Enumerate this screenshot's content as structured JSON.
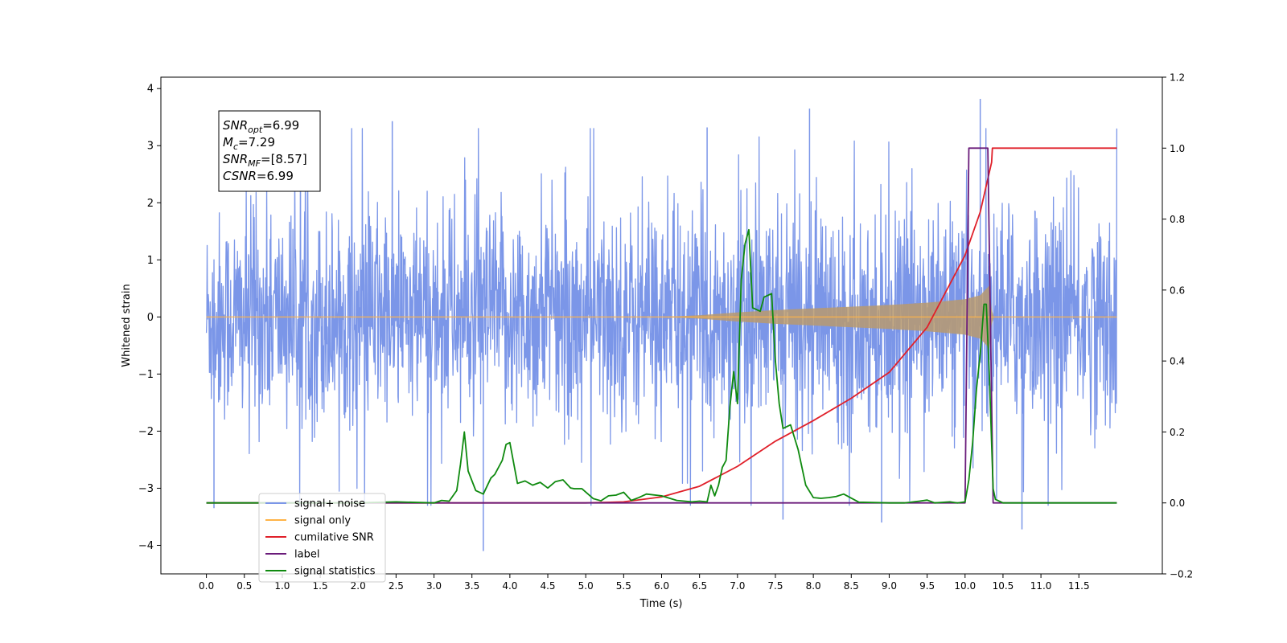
{
  "chart_data": {
    "type": "line",
    "title": "",
    "xlabel": "Time (s)",
    "ylabel": "Whitened strain",
    "ylabel_right": "",
    "xlim": [
      -0.6,
      12.6
    ],
    "ylim": [
      -4.5,
      4.2
    ],
    "ylim_right": [
      -0.2,
      1.2
    ],
    "x_ticks": [
      0.0,
      0.5,
      1.0,
      1.5,
      2.0,
      2.5,
      3.0,
      3.5,
      4.0,
      4.5,
      5.0,
      5.5,
      6.0,
      6.5,
      7.0,
      7.5,
      8.0,
      8.5,
      9.0,
      9.5,
      10.0,
      10.5,
      11.0,
      11.5
    ],
    "x_tick_labels": [
      "0.0",
      "0.5",
      "1.0",
      "1.5",
      "2.0",
      "2.5",
      "3.0",
      "3.5",
      "4.0",
      "4.5",
      "5.0",
      "5.5",
      "6.0",
      "6.5",
      "7.0",
      "7.5",
      "8.0",
      "8.5",
      "9.0",
      "9.5",
      "10.0",
      "10.5",
      "11.0",
      "11.5"
    ],
    "y_ticks": [
      4,
      3,
      2,
      1,
      0,
      -1,
      -2,
      -3,
      -4
    ],
    "y_tick_labels": [
      "4",
      "3",
      "2",
      "1",
      "0",
      "−1",
      "−2",
      "−3",
      "−4"
    ],
    "y_right_ticks": [
      1.2,
      1.0,
      0.8,
      0.6,
      0.4,
      0.2,
      0.0,
      -0.2
    ],
    "y_right_tick_labels": [
      "1.2",
      "1.0",
      "0.8",
      "0.6",
      "0.4",
      "0.2",
      "0.0",
      "−0.2"
    ],
    "grid": false,
    "legend_position": "lower-left",
    "annotation": {
      "lines": [
        {
          "sym": "SNR",
          "sub": "opt",
          "value": "=6.99"
        },
        {
          "sym": "M",
          "sub": "c",
          "value": "=7.29"
        },
        {
          "sym": "SNR",
          "sub": "MF",
          "value": "=[8.57]"
        },
        {
          "sym": "CSNR",
          "sub": "",
          "value": "=6.99"
        }
      ]
    },
    "series": [
      {
        "name": "signal+ noise",
        "axis": "left",
        "color": "#7b96e8",
        "kind": "noise_band",
        "x_range": [
          0.0,
          12.0
        ],
        "typical_amplitude": 1.2,
        "max": 3.82,
        "min": -4.1,
        "peaks": [
          {
            "x": 10.2,
            "y": 3.82
          },
          {
            "x": 7.95,
            "y": 3.65
          },
          {
            "x": 6.6,
            "y": 3.32
          },
          {
            "x": 2.45,
            "y": 3.43
          },
          {
            "x": 3.65,
            "y": -4.1
          },
          {
            "x": 10.75,
            "y": -3.72
          },
          {
            "x": 8.9,
            "y": -3.6
          },
          {
            "x": 7.6,
            "y": -3.55
          },
          {
            "x": 0.1,
            "y": -3.35
          }
        ]
      },
      {
        "name": "signal only",
        "axis": "left",
        "color": "#ffb347",
        "kind": "chirp",
        "x": [
          0.0,
          6.0,
          6.5,
          7.0,
          7.5,
          8.0,
          8.5,
          9.0,
          9.5,
          10.0,
          10.2,
          10.32,
          10.36,
          12.0
        ],
        "envelope": [
          0.0,
          0.0,
          0.03,
          0.08,
          0.12,
          0.15,
          0.18,
          0.21,
          0.25,
          0.31,
          0.38,
          0.55,
          0.0,
          0.0
        ]
      },
      {
        "name": "cumilative SNR",
        "axis": "right",
        "color": "#e0202a",
        "x": [
          0.0,
          5.0,
          5.5,
          6.0,
          6.5,
          7.0,
          7.5,
          8.0,
          8.5,
          9.0,
          9.5,
          10.0,
          10.2,
          10.35,
          10.36,
          12.0
        ],
        "values": [
          0.0,
          0.0,
          0.003,
          0.017,
          0.047,
          0.103,
          0.174,
          0.232,
          0.295,
          0.368,
          0.495,
          0.698,
          0.82,
          0.96,
          1.0,
          1.0
        ]
      },
      {
        "name": "label",
        "axis": "right",
        "color": "#6a1b7a",
        "x": [
          0.0,
          10.0,
          10.05,
          10.3,
          10.37,
          12.0
        ],
        "values": [
          0.0,
          0.0,
          1.0,
          1.0,
          0.0,
          0.0
        ]
      },
      {
        "name": "signal statistics",
        "axis": "right",
        "color": "#0f8a0f",
        "x": [
          0.0,
          2.0,
          2.5,
          3.0,
          3.1,
          3.2,
          3.3,
          3.35,
          3.4,
          3.45,
          3.55,
          3.65,
          3.75,
          3.8,
          3.9,
          3.95,
          4.0,
          4.1,
          4.2,
          4.3,
          4.4,
          4.5,
          4.6,
          4.7,
          4.8,
          4.85,
          4.95,
          5.1,
          5.2,
          5.3,
          5.4,
          5.5,
          5.6,
          5.7,
          5.8,
          6.0,
          6.2,
          6.4,
          6.5,
          6.6,
          6.65,
          6.7,
          6.75,
          6.8,
          6.85,
          6.9,
          6.95,
          7.0,
          7.05,
          7.1,
          7.15,
          7.2,
          7.3,
          7.35,
          7.45,
          7.5,
          7.55,
          7.6,
          7.7,
          7.8,
          7.9,
          8.0,
          8.1,
          8.2,
          8.3,
          8.4,
          8.6,
          9.0,
          9.2,
          9.4,
          9.5,
          9.6,
          9.8,
          9.9,
          10.0,
          10.05,
          10.1,
          10.15,
          10.2,
          10.25,
          10.28,
          10.32,
          10.37,
          10.4,
          10.5,
          11.0,
          11.5,
          12.0
        ],
        "values": [
          0.0,
          0.0,
          0.003,
          0.0,
          0.007,
          0.005,
          0.035,
          0.11,
          0.2,
          0.09,
          0.035,
          0.025,
          0.07,
          0.08,
          0.12,
          0.165,
          0.17,
          0.055,
          0.062,
          0.05,
          0.058,
          0.042,
          0.06,
          0.065,
          0.042,
          0.04,
          0.04,
          0.012,
          0.006,
          0.02,
          0.022,
          0.03,
          0.007,
          0.015,
          0.025,
          0.02,
          0.007,
          0.003,
          0.005,
          0.003,
          0.05,
          0.02,
          0.05,
          0.1,
          0.12,
          0.27,
          0.37,
          0.28,
          0.63,
          0.73,
          0.77,
          0.55,
          0.54,
          0.58,
          0.59,
          0.4,
          0.28,
          0.21,
          0.22,
          0.15,
          0.05,
          0.015,
          0.013,
          0.015,
          0.018,
          0.025,
          0.002,
          0.0,
          0.0,
          0.005,
          0.008,
          0.0,
          0.003,
          0.0,
          0.003,
          0.065,
          0.17,
          0.32,
          0.42,
          0.56,
          0.56,
          0.36,
          0.04,
          0.01,
          0.0,
          0.0,
          0.0,
          0.0
        ]
      }
    ]
  },
  "legend": {
    "items": [
      {
        "label": "signal+ noise",
        "color": "#7b96e8"
      },
      {
        "label": "signal only",
        "color": "#ffb347"
      },
      {
        "label": "cumilative SNR",
        "color": "#e0202a"
      },
      {
        "label": "label",
        "color": "#6a1b7a"
      },
      {
        "label": "signal statistics",
        "color": "#0f8a0f"
      }
    ]
  }
}
